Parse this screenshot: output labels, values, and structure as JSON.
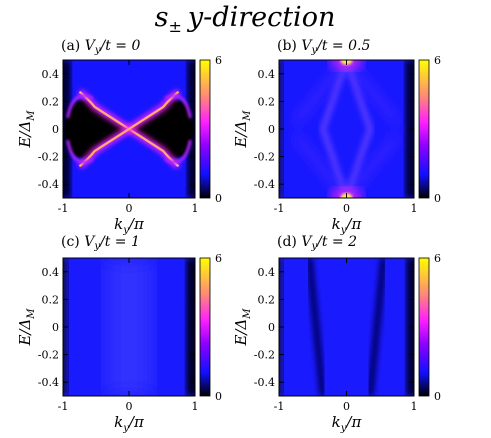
{
  "figure": {
    "title_symbol": "s",
    "title_subscript": "±",
    "title_rest": "y-direction"
  },
  "colorbar": {
    "stops": [
      "#000000",
      "#1010ff",
      "#9000ff",
      "#ff20ff",
      "#ff8080",
      "#ffc040",
      "#ffff00"
    ],
    "ticks": [
      0,
      6
    ],
    "range": [
      0,
      6
    ]
  },
  "chart_data": [
    {
      "type": "heatmap",
      "panel_label": "(a) ",
      "title_var": "V",
      "title_sub": "y",
      "title_rest": "/t = 0",
      "xlabel": "k",
      "xlabel_sub": "y",
      "xlabel_rest": "/π",
      "ylabel": "E/Δ",
      "ylabel_sub": "M",
      "xlim": [
        -1,
        1
      ],
      "ylim": [
        -0.5,
        0.5
      ],
      "xticks": [
        "-1",
        "0",
        "1"
      ],
      "yticks": [
        "0.4",
        "0.2",
        "0",
        "-0.2",
        "-0.4"
      ],
      "features": "gap with X-shaped crossing bands from about ±0.6 at E≈±0.2 to k=0 at E=0"
    },
    {
      "type": "heatmap",
      "panel_label": "(b) ",
      "title_var": "V",
      "title_sub": "y",
      "title_rest": "/t = 0.5",
      "xlabel": "k",
      "xlabel_sub": "y",
      "xlabel_rest": "/π",
      "ylabel": "E/Δ",
      "ylabel_sub": "M",
      "xlim": [
        -1,
        1
      ],
      "ylim": [
        -0.5,
        0.5
      ],
      "xticks": [
        "-1",
        "0",
        "1"
      ],
      "yticks": [
        "0.4",
        "0.2",
        "0",
        "-0.2",
        "-0.4"
      ],
      "features": "bright spots at k=0, E=±0.5 with diamond-shaped faint bands"
    },
    {
      "type": "heatmap",
      "panel_label": "(c) ",
      "title_var": "V",
      "title_sub": "y",
      "title_rest": "/t = 1",
      "xlabel": "k",
      "xlabel_sub": "y",
      "xlabel_rest": "/π",
      "ylabel": "E/Δ",
      "ylabel_sub": "M",
      "xlim": [
        -1,
        1
      ],
      "ylim": [
        -0.5,
        0.5
      ],
      "xticks": [
        "-1",
        "0",
        "1"
      ],
      "yticks": [
        "0.4",
        "0.2",
        "0",
        "-0.2",
        "-0.4"
      ],
      "features": "nearly uniform low density, dark at edges k=±1"
    },
    {
      "type": "heatmap",
      "panel_label": "(d) ",
      "title_var": "V",
      "title_sub": "y",
      "title_rest": "/t = 2",
      "xlabel": "k",
      "xlabel_sub": "y",
      "xlabel_rest": "/π",
      "ylabel": "E/Δ",
      "ylabel_sub": "M",
      "xlim": [
        -1,
        1
      ],
      "ylim": [
        -0.5,
        0.5
      ],
      "xticks": [
        "-1",
        "0",
        "1"
      ],
      "yticks": [
        "0.4",
        "0.2",
        "0",
        "-0.2",
        "-0.4"
      ],
      "features": "uniform blue with dark vertical lines near k≈±0.5"
    }
  ]
}
